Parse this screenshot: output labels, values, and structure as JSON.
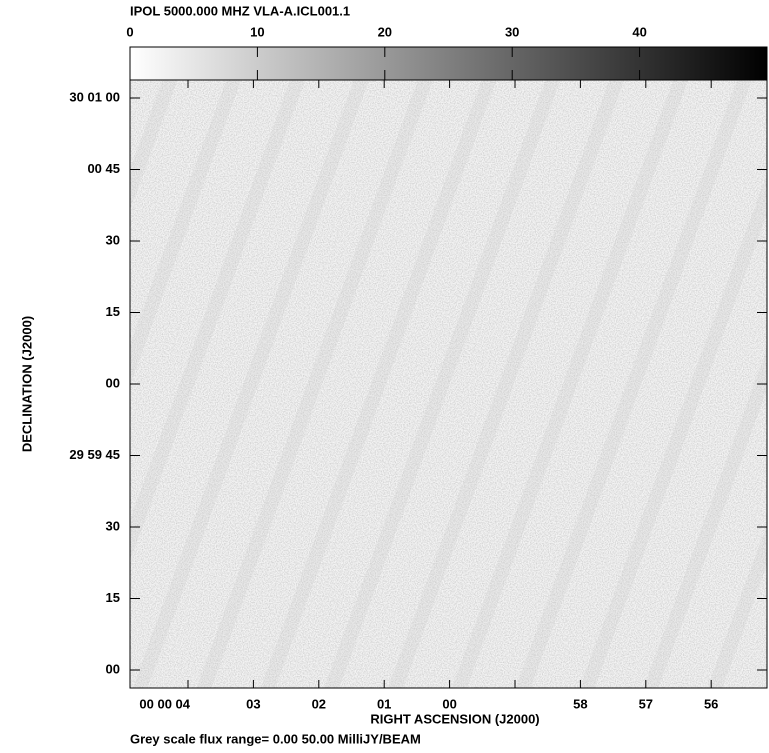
{
  "chart_data": {
    "type": "image",
    "title": "IPOL  5000.000 MHZ  VLA-A.ICL001.1",
    "colorbar": {
      "lim": [
        0,
        50
      ],
      "ticks": [
        0,
        10,
        20,
        30,
        40
      ]
    },
    "x_label": "RIGHT ASCENSION (J2000)",
    "y_label": "DECLINATION (J2000)",
    "x_categories": [
      "00 00 04",
      "03",
      "02",
      "01",
      "00",
      null,
      "58",
      "57",
      "56"
    ],
    "y_categories": [
      "30 01 00",
      "00 45",
      "30",
      "15",
      "00",
      "29 59 45",
      "30",
      "15",
      "00"
    ],
    "footer": "Grey scale flux range= 0.00 50.00 MilliJY/BEAM"
  }
}
